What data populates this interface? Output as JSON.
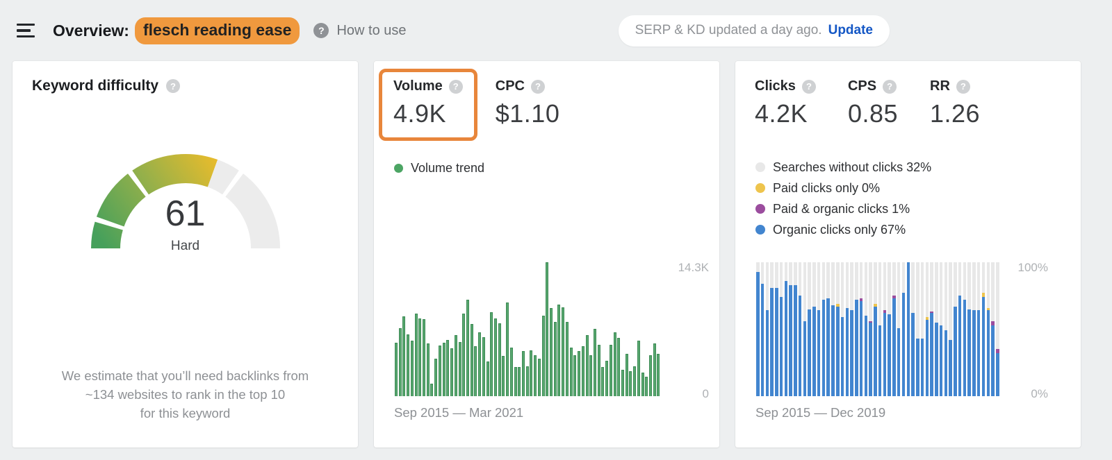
{
  "header": {
    "title_prefix": "Overview:",
    "keyword": "flesch reading ease",
    "help_label": "How to use",
    "help_glyph": "?",
    "update_notice": "SERP & KD updated a day ago.",
    "update_action": "Update"
  },
  "colors": {
    "page_bg": "#edeff0",
    "highlight_orange": "#f0993e",
    "annotation_orange": "#e8863b",
    "update_blue": "#1457c5",
    "volume_green": "#4ca564",
    "volume_bar_green": "#58a76f",
    "volume_bar_border": "#3d8b55",
    "organic_blue": "#4285cf",
    "paid_yellow": "#eec44d",
    "paid_organic_purple": "#9b4d9e",
    "no_click_gray": "#e8e8e8",
    "gauge_gray": "#ececec",
    "gauge_green": "#46a05b",
    "gauge_mid": "#95b04a",
    "gauge_yellow": "#e5bb2d"
  },
  "kd_card": {
    "title": "Keyword difficulty",
    "help_glyph": "?",
    "score": "61",
    "score_label": "Hard",
    "description_lines": [
      "We estimate that you’ll need backlinks from",
      "~134 websites to rank in the top 10",
      "for this keyword"
    ]
  },
  "volume_card": {
    "volume_label": "Volume",
    "volume_value": "4.9K",
    "cpc_label": "CPC",
    "cpc_value": "$1.10",
    "legend_label": "Volume trend",
    "y_max_label": "14.3K",
    "y_min_label": "0",
    "date_range": "Sep 2015 — Mar 2021"
  },
  "clicks_card": {
    "stats": [
      {
        "label": "Clicks",
        "value": "4.2K"
      },
      {
        "label": "CPS",
        "value": "0.85"
      },
      {
        "label": "RR",
        "value": "1.26"
      }
    ],
    "legend": [
      {
        "label": "Searches without clicks 32%",
        "color_key": "no_click_gray"
      },
      {
        "label": "Paid clicks only 0%",
        "color_key": "paid_yellow"
      },
      {
        "label": "Paid & organic clicks 1%",
        "color_key": "paid_organic_purple"
      },
      {
        "label": "Organic clicks only 67%",
        "color_key": "organic_blue"
      }
    ],
    "y_max_label": "100%",
    "y_min_label": "0%",
    "date_range": "Sep 2015 — Dec 2019"
  },
  "chart_data": [
    {
      "type": "gauge",
      "title": "Keyword difficulty",
      "value": 61,
      "max": 100,
      "label": "Hard",
      "segment_boundaries": [
        10,
        30,
        70,
        100
      ],
      "gradient": [
        "#46a05b",
        "#95b04a",
        "#e5bb2d"
      ],
      "rest_color": "#ececec"
    },
    {
      "type": "bar",
      "name": "volume-trend",
      "legend": "Volume trend",
      "x_start": "Sep 2015",
      "x_end": "Mar 2021",
      "ylim": [
        0,
        14300
      ],
      "y_tick_labels": [
        "14.3K",
        "0"
      ],
      "bar_color": "#58a76f",
      "values": [
        5700,
        7300,
        8500,
        6600,
        5900,
        8800,
        8300,
        8200,
        5600,
        1300,
        4000,
        5400,
        5700,
        6000,
        5100,
        6500,
        5800,
        8800,
        10300,
        7700,
        5300,
        6800,
        6300,
        3700,
        9000,
        8300,
        7800,
        4300,
        10000,
        5200,
        3100,
        3100,
        4800,
        3200,
        4900,
        4400,
        4000,
        8600,
        14300,
        9400,
        7900,
        9800,
        9500,
        7900,
        5200,
        4400,
        4800,
        5300,
        6500,
        4400,
        7200,
        5500,
        3100,
        3800,
        5500,
        6800,
        6200,
        2800,
        4500,
        2700,
        3200,
        5900,
        2500,
        2100,
        4400,
        5600,
        4500
      ]
    },
    {
      "type": "stacked-bar",
      "name": "clicks-breakdown",
      "x_start": "Sep 2015",
      "x_end": "Dec 2019",
      "ylim": [
        0,
        100
      ],
      "y_tick_labels": [
        "100%",
        "0%"
      ],
      "track_color_key": "no_click_gray",
      "series": [
        {
          "name": "Paid clicks only",
          "color_key": "paid_yellow",
          "pct_values": [
            0,
            0,
            0,
            0,
            0,
            0,
            0,
            0,
            0,
            0,
            0,
            0,
            0,
            0,
            0,
            0,
            0,
            2,
            0,
            0,
            0,
            0,
            0,
            0,
            0,
            2,
            0,
            0,
            0,
            0,
            0,
            0,
            0,
            0,
            0,
            0,
            2,
            0,
            0,
            0,
            0,
            0,
            0,
            0,
            0,
            0,
            0,
            0,
            3,
            2,
            0,
            0
          ]
        },
        {
          "name": "Paid & organic clicks",
          "color_key": "paid_organic_purple",
          "pct_values": [
            0,
            0,
            0,
            0,
            0,
            0,
            0,
            0,
            0,
            0,
            0,
            0,
            0,
            0,
            0,
            0,
            0,
            0,
            0,
            0,
            0,
            0,
            2,
            0,
            1,
            0,
            0,
            2,
            0,
            2,
            0,
            0,
            0,
            0,
            0,
            0,
            0,
            1,
            0,
            0,
            0,
            0,
            0,
            0,
            0,
            0,
            0,
            0,
            0,
            0,
            3,
            3
          ]
        },
        {
          "name": "Organic clicks only",
          "color_key": "organic_blue",
          "pct_values": [
            93,
            84,
            64,
            81,
            81,
            74,
            86,
            83,
            83,
            75,
            56,
            65,
            67,
            64,
            72,
            73,
            68,
            67,
            59,
            66,
            64,
            72,
            71,
            60,
            55,
            67,
            53,
            62,
            61,
            73,
            51,
            77,
            100,
            62,
            43,
            43,
            57,
            62,
            55,
            53,
            49,
            42,
            67,
            75,
            72,
            65,
            64,
            64,
            74,
            64,
            53,
            32
          ]
        }
      ]
    }
  ]
}
